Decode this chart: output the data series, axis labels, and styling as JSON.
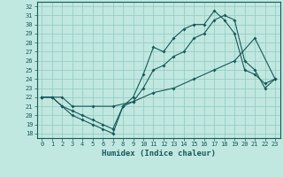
{
  "xlabel": "Humidex (Indice chaleur)",
  "bg_color": "#c0e8e0",
  "grid_color": "#90c8c0",
  "line_color": "#1a5858",
  "xlim": [
    -0.5,
    23.5
  ],
  "ylim": [
    17.5,
    32.5
  ],
  "xticks": [
    0,
    1,
    2,
    3,
    4,
    5,
    6,
    7,
    8,
    9,
    10,
    11,
    12,
    13,
    14,
    15,
    16,
    17,
    18,
    19,
    20,
    21,
    22,
    23
  ],
  "yticks": [
    18,
    19,
    20,
    21,
    22,
    23,
    24,
    25,
    26,
    27,
    28,
    29,
    30,
    31,
    32
  ],
  "line1_x": [
    0,
    1,
    2,
    3,
    4,
    5,
    6,
    7,
    8,
    9,
    10,
    11,
    12,
    13,
    14,
    15,
    16,
    17,
    18,
    19,
    20,
    21,
    22,
    23
  ],
  "line1_y": [
    22,
    22,
    21,
    20,
    19.5,
    19,
    18.5,
    18,
    21,
    22,
    24.5,
    27.5,
    27,
    28.5,
    29.5,
    30,
    30,
    31.5,
    30.5,
    29,
    25,
    24.5,
    23.5,
    24
  ],
  "line2_x": [
    0,
    1,
    2,
    3,
    4,
    5,
    6,
    7,
    8,
    9,
    10,
    11,
    12,
    13,
    14,
    15,
    16,
    17,
    18,
    19,
    20,
    21,
    22,
    23
  ],
  "line2_y": [
    22,
    22,
    21,
    20.5,
    20,
    19.5,
    19,
    18.5,
    21,
    21.5,
    23,
    25,
    25.5,
    26.5,
    27,
    28.5,
    29,
    30.5,
    31,
    30.5,
    26,
    25,
    23,
    24
  ],
  "line3_x": [
    0,
    2,
    3,
    5,
    7,
    9,
    11,
    13,
    15,
    17,
    19,
    21,
    23
  ],
  "line3_y": [
    22,
    22,
    21,
    21,
    21,
    21.5,
    22.5,
    23,
    24,
    25,
    26,
    28.5,
    24
  ],
  "tick_fontsize": 5.0,
  "xlabel_fontsize": 6.5
}
